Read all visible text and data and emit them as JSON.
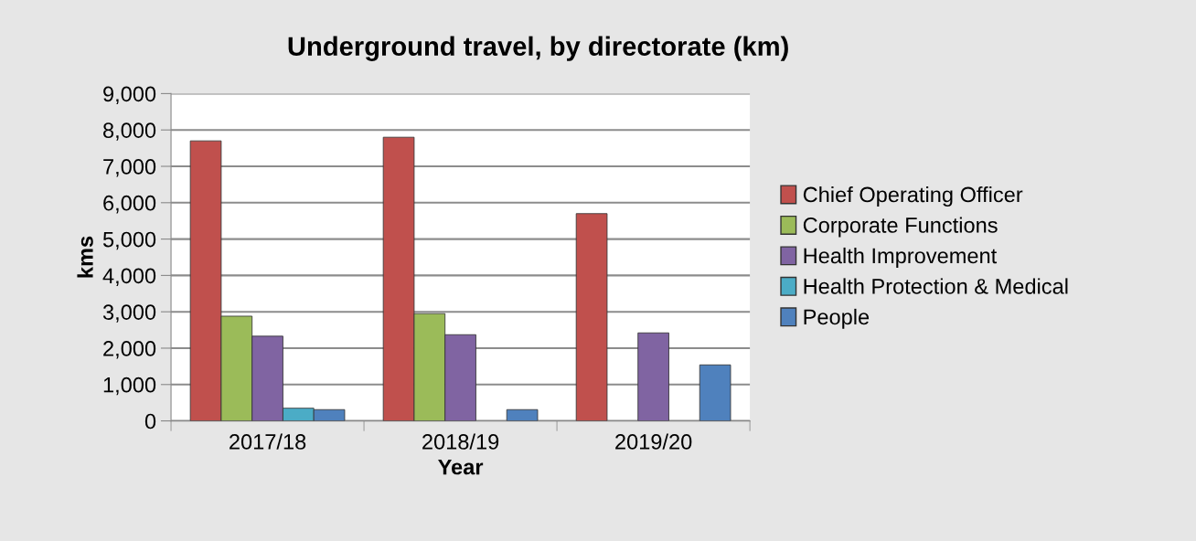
{
  "chart_data": {
    "type": "bar",
    "title": "Underground travel, by directorate (km)",
    "xlabel": "Year",
    "ylabel": "kms",
    "categories": [
      "2017/18",
      "2018/19",
      "2019/20"
    ],
    "series": [
      {
        "name": "Chief Operating Officer",
        "color": "#c0504d",
        "values": [
          7700,
          7800,
          5700
        ]
      },
      {
        "name": "Corporate Functions",
        "color": "#9bbb59",
        "values": [
          2880,
          2950,
          null
        ]
      },
      {
        "name": "Health Improvement",
        "color": "#8064a2",
        "values": [
          2330,
          2370,
          2420
        ]
      },
      {
        "name": "Health Protection & Medical",
        "color": "#4bacc6",
        "values": [
          350,
          null,
          null
        ]
      },
      {
        "name": "People",
        "color": "#4f81bd",
        "values": [
          310,
          310,
          1540
        ]
      }
    ],
    "ylim": [
      0,
      9000
    ],
    "yticks": [
      {
        "value": 0,
        "label": "0"
      },
      {
        "value": 1000,
        "label": "1,000"
      },
      {
        "value": 2000,
        "label": "2,000"
      },
      {
        "value": 3000,
        "label": "3,000"
      },
      {
        "value": 4000,
        "label": "4,000"
      },
      {
        "value": 5000,
        "label": "5,000"
      },
      {
        "value": 6000,
        "label": "6,000"
      },
      {
        "value": 7000,
        "label": "7,000"
      },
      {
        "value": 8000,
        "label": "8,000"
      },
      {
        "value": 9000,
        "label": "9,000"
      }
    ],
    "grid": "y",
    "legend": "right"
  }
}
